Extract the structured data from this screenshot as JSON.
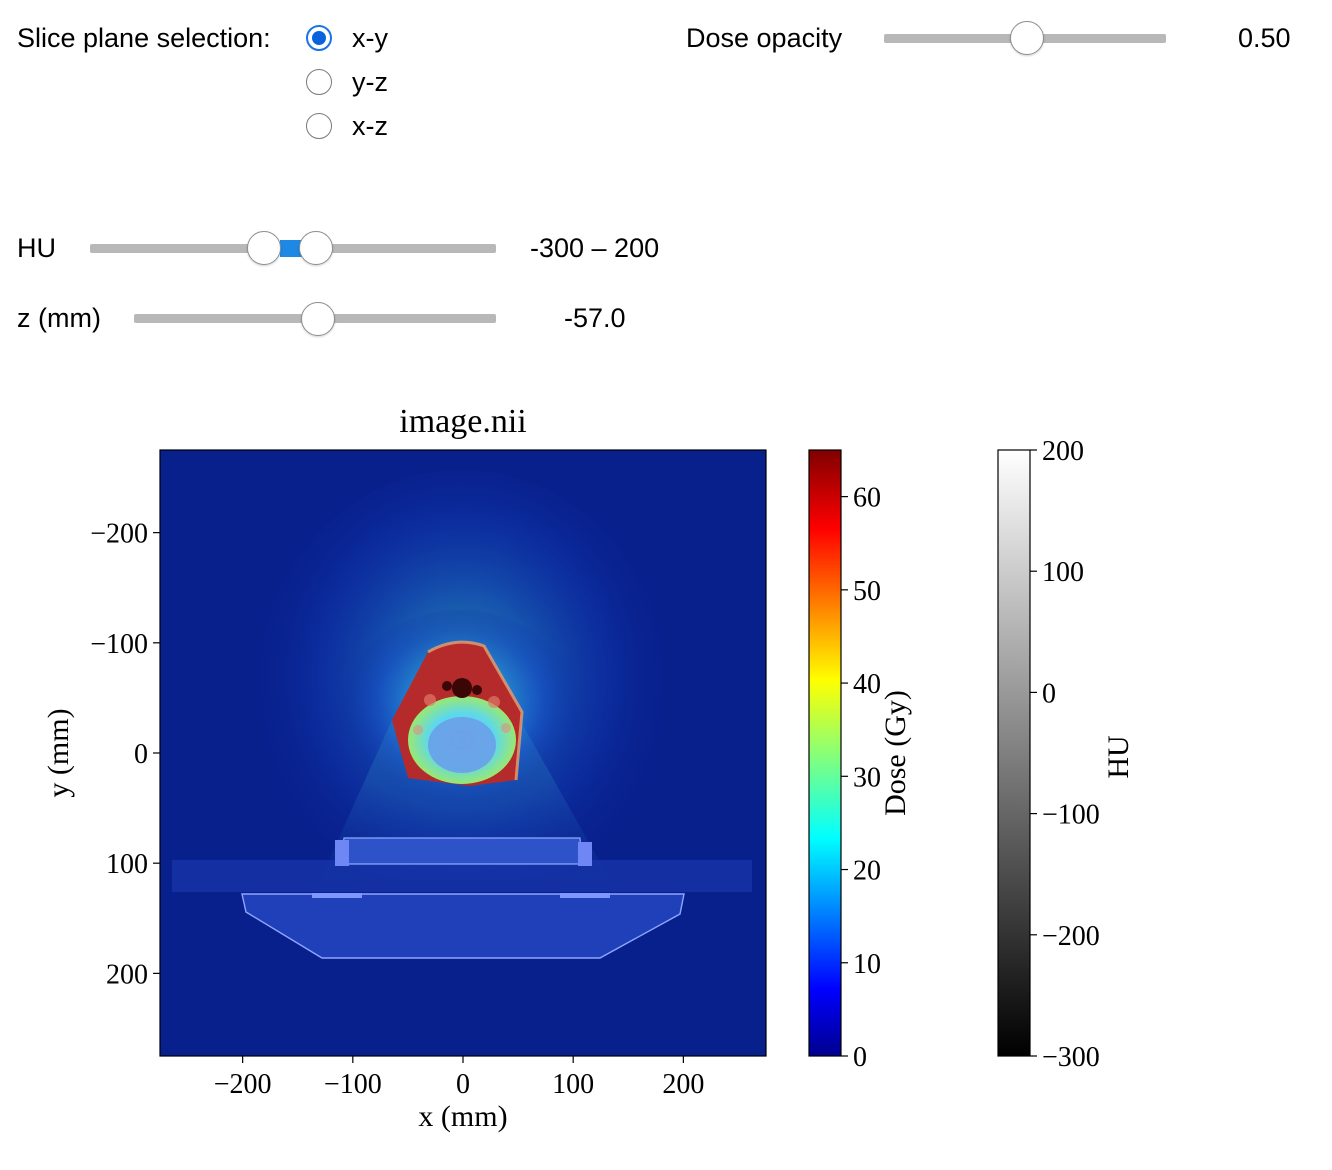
{
  "controls": {
    "slice_plane": {
      "label": "Slice plane selection:",
      "options": [
        "x-y",
        "y-z",
        "x-z"
      ],
      "selected": "x-y"
    },
    "dose_opacity": {
      "label": "Dose opacity",
      "value": 0.5,
      "display": "0.50"
    },
    "hu_range": {
      "label": "HU",
      "low": -300,
      "high": 200,
      "display": "-300 – 200"
    },
    "z": {
      "label": "z (mm)",
      "value": -57.0,
      "display": "-57.0"
    }
  },
  "chart_data": {
    "type": "heatmap",
    "title": "image.nii",
    "xlabel": "x (mm)",
    "ylabel": "y (mm)",
    "xlim": [
      -275,
      275
    ],
    "ylim": [
      275,
      -275
    ],
    "x_ticks": [
      -200,
      -100,
      0,
      100,
      200
    ],
    "x_tick_labels": [
      "−200",
      "−100",
      "0",
      "100",
      "200"
    ],
    "y_ticks": [
      -200,
      -100,
      0,
      100,
      200
    ],
    "y_tick_labels": [
      "−200",
      "−100",
      "0",
      "100",
      "200"
    ],
    "colorbars": [
      {
        "label": "Dose (Gy)",
        "colormap": "jet",
        "range": [
          0,
          65
        ],
        "ticks": [
          0,
          10,
          20,
          30,
          40,
          50,
          60
        ],
        "tick_labels": [
          "0",
          "10",
          "20",
          "30",
          "40",
          "50",
          "60"
        ]
      },
      {
        "label": "HU",
        "colormap": "gray",
        "range": [
          -300,
          200
        ],
        "ticks": [
          -300,
          -200,
          -100,
          0,
          100,
          200
        ],
        "tick_labels": [
          "−300",
          "−200",
          "−100",
          "0",
          "100",
          "200"
        ]
      }
    ]
  },
  "colors": {
    "accent": "#1e88e5",
    "background_field": "#08208c",
    "track": "#b8b8b8"
  }
}
